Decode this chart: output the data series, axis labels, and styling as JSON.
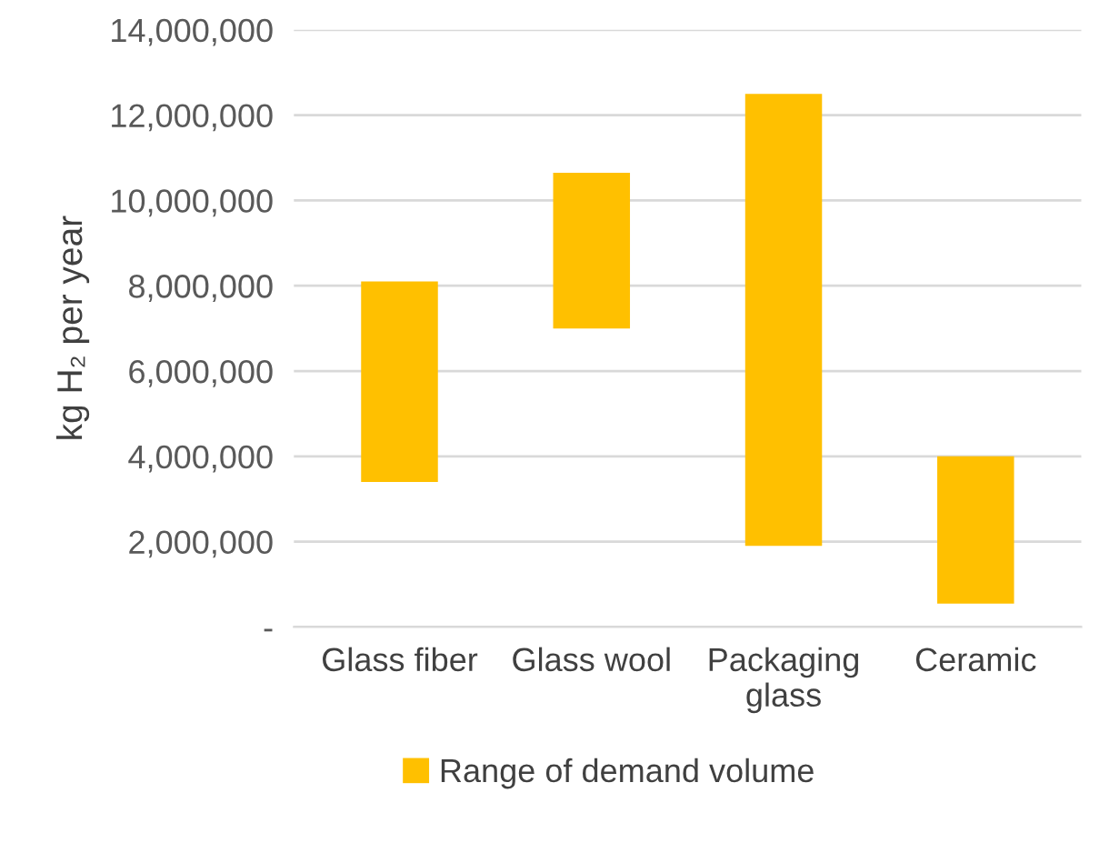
{
  "chart_data": {
    "type": "bar",
    "ylabel": "kg H₂ per year",
    "categories": [
      "Glass fiber",
      "Glass wool",
      "Packaging glass",
      "Ceramic"
    ],
    "series": [
      {
        "name": "Range of demand volume",
        "color": "#ffc000",
        "values": [
          4700000,
          3650000,
          10600000,
          3450000
        ],
        "base": [
          3400000,
          7000000,
          1900000,
          550000
        ]
      }
    ],
    "ylim": [
      0,
      14000000
    ],
    "yticks": [
      {
        "value": 0,
        "label": "-"
      },
      {
        "value": 2000000,
        "label": "2,000,000"
      },
      {
        "value": 4000000,
        "label": "4,000,000"
      },
      {
        "value": 6000000,
        "label": "6,000,000"
      },
      {
        "value": 8000000,
        "label": "8,000,000"
      },
      {
        "value": 10000000,
        "label": "10,000,000"
      },
      {
        "value": 12000000,
        "label": "12,000,000"
      },
      {
        "value": 14000000,
        "label": "14,000,000"
      }
    ],
    "grid": "y",
    "legend": "bottom"
  }
}
